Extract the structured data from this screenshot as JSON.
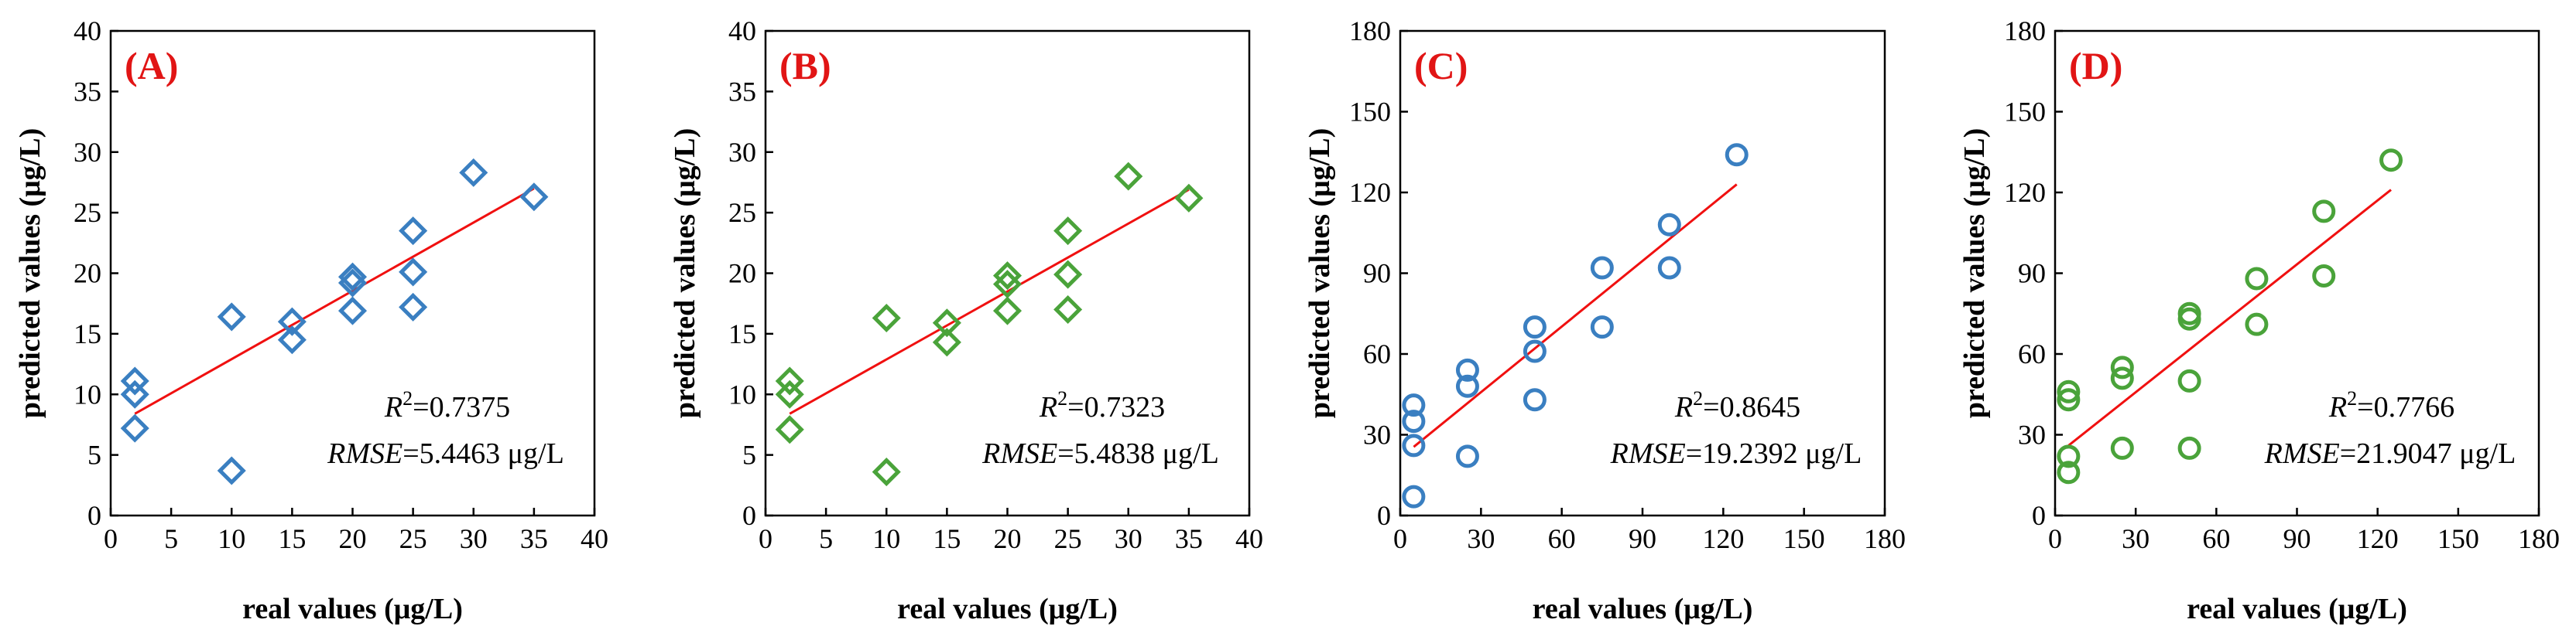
{
  "colors": {
    "blue": "#3a7fc1",
    "green": "#4aa33a",
    "fit": "#f01010",
    "label": "#e11515"
  },
  "chart_data": [
    {
      "type": "scatter",
      "panel_label": "(A)",
      "marker": "diamond",
      "color": "blue",
      "xlabel": "real values (μg/L)",
      "ylabel": "predicted values (μg/L)",
      "xlim": [
        0,
        40
      ],
      "ylim": [
        0,
        40
      ],
      "xticks": [
        0,
        5,
        10,
        15,
        20,
        25,
        30,
        35,
        40
      ],
      "yticks": [
        0,
        5,
        10,
        15,
        20,
        25,
        30,
        35,
        40
      ],
      "points": [
        [
          2,
          7.2
        ],
        [
          2,
          10
        ],
        [
          2,
          11.1
        ],
        [
          10,
          3.7
        ],
        [
          10,
          16.4
        ],
        [
          15,
          14.5
        ],
        [
          15,
          16
        ],
        [
          20,
          16.9
        ],
        [
          20,
          19.2
        ],
        [
          20,
          19.7
        ],
        [
          25,
          17.2
        ],
        [
          25,
          20.1
        ],
        [
          25,
          23.5
        ],
        [
          30,
          28.3
        ],
        [
          35,
          26.3
        ]
      ],
      "fit_line": [
        [
          2,
          8.4
        ],
        [
          35,
          27
        ]
      ],
      "r2_label": "R",
      "r2_sup": "2",
      "r2_value": "=0.7375",
      "rmse_label": "RMSE",
      "rmse_value": "=5.4463 μg/L"
    },
    {
      "type": "scatter",
      "panel_label": "(B)",
      "marker": "diamond",
      "color": "green",
      "xlabel": "real values (μg/L)",
      "ylabel": "predicted values (μg/L)",
      "xlim": [
        0,
        40
      ],
      "ylim": [
        0,
        40
      ],
      "xticks": [
        0,
        5,
        10,
        15,
        20,
        25,
        30,
        35,
        40
      ],
      "yticks": [
        0,
        5,
        10,
        15,
        20,
        25,
        30,
        35,
        40
      ],
      "points": [
        [
          2,
          7.1
        ],
        [
          2,
          10
        ],
        [
          2,
          11.1
        ],
        [
          10,
          3.6
        ],
        [
          10,
          16.3
        ],
        [
          15,
          14.3
        ],
        [
          15,
          15.9
        ],
        [
          20,
          16.9
        ],
        [
          20,
          19.1
        ],
        [
          20,
          19.8
        ],
        [
          25,
          17
        ],
        [
          25,
          19.9
        ],
        [
          25,
          23.5
        ],
        [
          30,
          28
        ],
        [
          35,
          26.2
        ]
      ],
      "fit_line": [
        [
          2,
          8.4
        ],
        [
          35,
          26.9
        ]
      ],
      "r2_label": "R",
      "r2_sup": "2",
      "r2_value": "=0.7323",
      "rmse_label": "RMSE",
      "rmse_value": "=5.4838 μg/L"
    },
    {
      "type": "scatter",
      "panel_label": "(C)",
      "marker": "circle",
      "color": "blue",
      "xlabel": "real values (μg/L)",
      "ylabel": "predicted values (μg/L)",
      "xlim": [
        0,
        180
      ],
      "ylim": [
        0,
        180
      ],
      "xticks": [
        0,
        30,
        60,
        90,
        120,
        150,
        180
      ],
      "yticks": [
        0,
        30,
        60,
        90,
        120,
        150,
        180
      ],
      "points": [
        [
          5,
          7
        ],
        [
          5,
          26
        ],
        [
          5,
          35
        ],
        [
          5,
          41
        ],
        [
          25,
          22
        ],
        [
          25,
          48
        ],
        [
          25,
          54
        ],
        [
          50,
          43
        ],
        [
          50,
          61
        ],
        [
          50,
          70
        ],
        [
          75,
          70
        ],
        [
          75,
          92
        ],
        [
          100,
          92
        ],
        [
          100,
          108
        ],
        [
          125,
          134
        ]
      ],
      "fit_line": [
        [
          5,
          25.5
        ],
        [
          125,
          123
        ]
      ],
      "r2_label": "R",
      "r2_sup": "2",
      "r2_value": "=0.8645",
      "rmse_label": "RMSE",
      "rmse_value": "=19.2392 μg/L"
    },
    {
      "type": "scatter",
      "panel_label": "(D)",
      "marker": "circle",
      "color": "green",
      "xlabel": "real values (μg/L)",
      "ylabel": "predicted values (μg/L)",
      "xlim": [
        0,
        180
      ],
      "ylim": [
        0,
        180
      ],
      "xticks": [
        0,
        30,
        60,
        90,
        120,
        150,
        180
      ],
      "yticks": [
        0,
        30,
        60,
        90,
        120,
        150,
        180
      ],
      "points": [
        [
          5,
          16
        ],
        [
          5,
          22
        ],
        [
          5,
          43
        ],
        [
          5,
          46
        ],
        [
          25,
          25
        ],
        [
          25,
          51
        ],
        [
          25,
          55
        ],
        [
          50,
          25
        ],
        [
          50,
          50
        ],
        [
          50,
          73
        ],
        [
          50,
          75
        ],
        [
          75,
          71
        ],
        [
          75,
          88
        ],
        [
          100,
          89
        ],
        [
          100,
          113
        ],
        [
          125,
          132
        ]
      ],
      "fit_line": [
        [
          5,
          26
        ],
        [
          125,
          121
        ]
      ],
      "r2_label": "R",
      "r2_sup": "2",
      "r2_value": "=0.7766",
      "rmse_label": "RMSE",
      "rmse_value": "=21.9047 μg/L"
    }
  ]
}
